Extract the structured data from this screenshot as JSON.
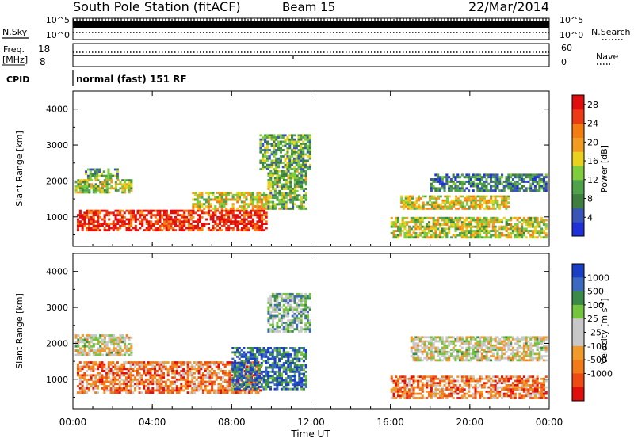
{
  "header": {
    "station": "South Pole Station (fitACF)",
    "beam": "Beam 15",
    "date": "22/Mar/2014"
  },
  "noise_panel": {
    "left_label": "N.Sky",
    "left_ticks": [
      "10^5",
      "10^0"
    ],
    "right_label": "N.Search",
    "right_ticks": [
      "10^5",
      "10^0"
    ]
  },
  "freq_panel": {
    "left_label_line1": "Freq.",
    "left_label_line2": "[MHz]",
    "left_ticks": [
      "18",
      "8"
    ],
    "right_label": "Nave",
    "right_ticks": [
      "60",
      "0"
    ]
  },
  "cpid": {
    "label": "CPID",
    "value": "normal (fast) 151 RF"
  },
  "colors": {
    "power": [
      "#2030d8",
      "#3a55b8",
      "#3e7f40",
      "#4ea24a",
      "#7fcc3c",
      "#e9d21e",
      "#f39a20",
      "#f47b12",
      "#ee3a14",
      "#e10e0e"
    ],
    "velocity": [
      "#1a3fc4",
      "#3b68c0",
      "#3a8a4a",
      "#75c43e",
      "#c8c8c8",
      "#c8c8c8",
      "#f09a2a",
      "#f27a18",
      "#ee4a14",
      "#e10e0e"
    ]
  },
  "chart_data": [
    {
      "type": "heatmap",
      "title": "",
      "xlabel": "",
      "ylabel": "Slant Range [km]",
      "x_ticks": [
        "00:00",
        "04:00",
        "08:00",
        "12:00",
        "16:00",
        "20:00",
        "00:00"
      ],
      "y_ticks": [
        1000,
        2000,
        3000,
        4000
      ],
      "ylim": [
        180,
        4500
      ],
      "colorbar": {
        "label": "Power [dB]",
        "ticks": [
          4,
          8,
          12,
          16,
          20,
          24,
          28
        ],
        "range": [
          0,
          30
        ]
      },
      "regions": [
        {
          "t0": 0.1,
          "t1": 3.0,
          "r0": 1650,
          "r1": 2050,
          "level": 0.45
        },
        {
          "t0": 0.6,
          "t1": 2.3,
          "r0": 2050,
          "r1": 2350,
          "level": 0.35
        },
        {
          "t0": 0.2,
          "t1": 9.8,
          "r0": 600,
          "r1": 1200,
          "level": 0.9
        },
        {
          "t0": 6.0,
          "t1": 9.8,
          "r0": 1200,
          "r1": 1700,
          "level": 0.55
        },
        {
          "t0": 9.8,
          "t1": 11.8,
          "r0": 1200,
          "r1": 2300,
          "level": 0.4
        },
        {
          "t0": 9.4,
          "t1": 12.0,
          "r0": 2300,
          "r1": 3300,
          "level": 0.35
        },
        {
          "t0": 16.0,
          "t1": 23.9,
          "r0": 400,
          "r1": 1000,
          "level": 0.5
        },
        {
          "t0": 16.5,
          "t1": 22.0,
          "r0": 1200,
          "r1": 1600,
          "level": 0.55
        },
        {
          "t0": 18.0,
          "t1": 23.9,
          "r0": 1700,
          "r1": 2200,
          "level": 0.25
        }
      ]
    },
    {
      "type": "heatmap",
      "title": "",
      "xlabel": "Time UT",
      "ylabel": "Slant Range [km]",
      "x_ticks": [
        "00:00",
        "04:00",
        "08:00",
        "12:00",
        "16:00",
        "20:00",
        "00:00"
      ],
      "y_ticks": [
        1000,
        2000,
        3000,
        4000
      ],
      "ylim": [
        180,
        4500
      ],
      "colorbar": {
        "label": "Velocity [m s^-1]",
        "ticks": [
          "1000",
          "500",
          "100",
          "25",
          "-25",
          "-100",
          "-500",
          "-1000"
        ]
      },
      "regions": [
        {
          "t0": 0.1,
          "t1": 3.0,
          "r0": 1650,
          "r1": 2250,
          "level": 0.5
        },
        {
          "t0": 0.2,
          "t1": 9.5,
          "r0": 600,
          "r1": 1500,
          "level": 0.75
        },
        {
          "t0": 8.0,
          "t1": 11.8,
          "r0": 700,
          "r1": 1900,
          "level": 0.15
        },
        {
          "t0": 9.8,
          "t1": 12.0,
          "r0": 2300,
          "r1": 3400,
          "level": 0.35
        },
        {
          "t0": 16.0,
          "t1": 23.9,
          "r0": 450,
          "r1": 1100,
          "level": 0.75
        },
        {
          "t0": 17.0,
          "t1": 23.9,
          "r0": 1500,
          "r1": 2200,
          "level": 0.5
        }
      ]
    }
  ]
}
